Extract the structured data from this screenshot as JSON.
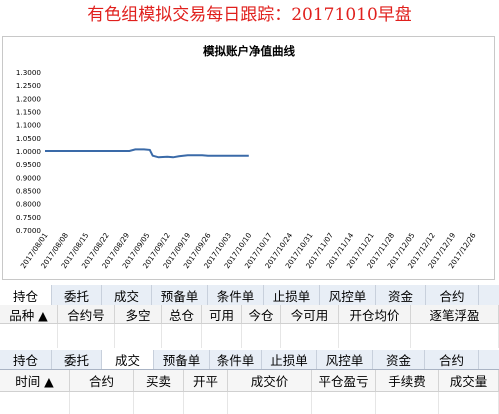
{
  "header": {
    "title": "有色组模拟交易每日跟踪：20171010早盘"
  },
  "chart_data": {
    "type": "line",
    "title": "模拟账户净值曲线",
    "ylim": [
      0.7,
      1.3
    ],
    "yticks": [
      "1.3000",
      "1.2500",
      "1.2000",
      "1.1500",
      "1.1000",
      "1.0500",
      "1.0000",
      "0.9500",
      "0.9000",
      "0.8500",
      "0.8000",
      "0.7500",
      "0.7000"
    ],
    "x_tick_labels": [
      "2017/08/01",
      "2017/08/08",
      "2017/08/15",
      "2017/08/22",
      "2017/08/29",
      "2017/09/05",
      "2017/09/12",
      "2017/09/19",
      "2017/09/26",
      "2017/10/03",
      "2017/10/10",
      "2017/10/17",
      "2017/10/24",
      "2017/10/31",
      "2017/11/07",
      "2017/11/14",
      "2017/11/21",
      "2017/11/28",
      "2017/12/05",
      "2017/12/12",
      "2017/12/19",
      "2017/12/26"
    ],
    "series": [
      {
        "color": "#3a6aa8",
        "points": [
          [
            "2017/08/01",
            1.0
          ],
          [
            "2017/08/10",
            1.0
          ],
          [
            "2017/08/20",
            1.0
          ],
          [
            "2017/08/30",
            1.0
          ],
          [
            "2017/09/01",
            1.006
          ],
          [
            "2017/09/04",
            1.006
          ],
          [
            "2017/09/06",
            1.004
          ],
          [
            "2017/09/07",
            0.982
          ],
          [
            "2017/09/09",
            0.976
          ],
          [
            "2017/09/12",
            0.978
          ],
          [
            "2017/09/14",
            0.976
          ],
          [
            "2017/09/16",
            0.98
          ],
          [
            "2017/09/19",
            0.984
          ],
          [
            "2017/09/24",
            0.984
          ],
          [
            "2017/09/26",
            0.982
          ],
          [
            "2017/10/03",
            0.982
          ],
          [
            "2017/10/10",
            0.982
          ]
        ]
      }
    ]
  },
  "position_tabs": {
    "items": [
      "持仓",
      "委托",
      "成交",
      "预备单",
      "条件单",
      "止损单",
      "风控单",
      "资金",
      "合约"
    ],
    "active_index": 0
  },
  "position_columns": [
    "品种 ▲",
    "合约号",
    "多空",
    "总仓",
    "可用",
    "今仓",
    "今可用",
    "开仓均价",
    "逐笔浮盈"
  ],
  "trade_tabs": {
    "items": [
      "持仓",
      "委托",
      "成交",
      "预备单",
      "条件单",
      "止损单",
      "风控单",
      "资金",
      "合约"
    ],
    "active_index": 2
  },
  "trade_columns": [
    "时间 ▲",
    "合约",
    "买卖",
    "开平",
    "成交价",
    "平仓盈亏",
    "手续费",
    "成交量"
  ]
}
